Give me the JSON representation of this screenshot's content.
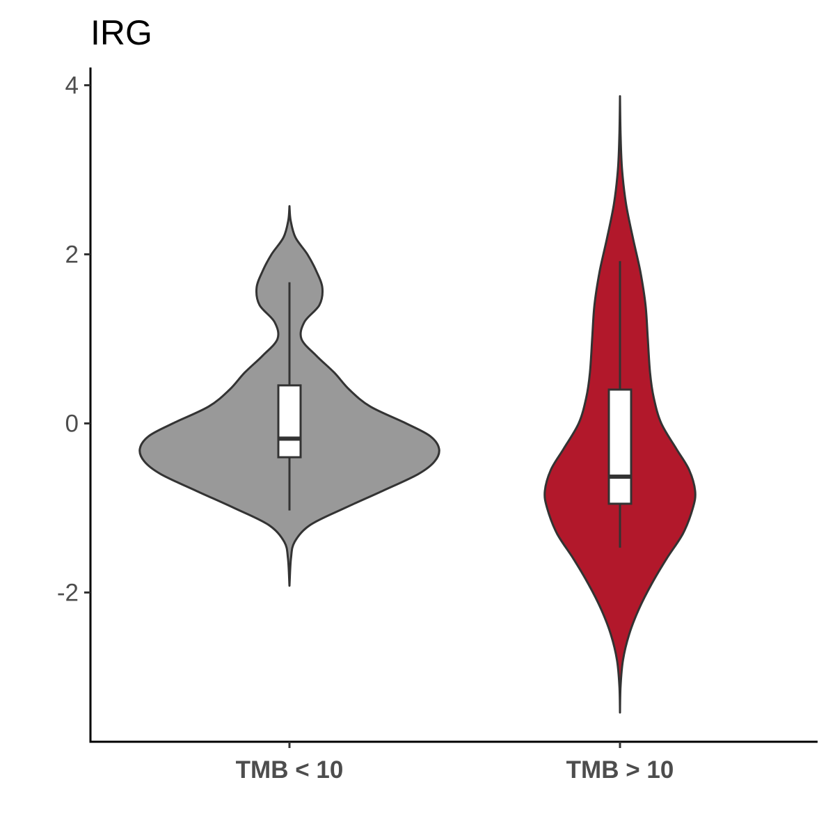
{
  "chart_data": {
    "type": "violin",
    "title": "IRG",
    "xlabel": "",
    "ylabel": "",
    "ylim": [
      -3.75,
      4.2
    ],
    "yticks": [
      {
        "value": -2,
        "label": "-2"
      },
      {
        "value": 0,
        "label": "0"
      },
      {
        "value": 2,
        "label": "2"
      },
      {
        "value": 4,
        "label": "4"
      }
    ],
    "categories": [
      "TMB < 10",
      "TMB > 10"
    ],
    "grid": false,
    "legend": "none",
    "series": [
      {
        "category": "TMB < 10",
        "color": "#999999",
        "box": {
          "whisker_low": -1.03,
          "q1": -0.4,
          "median": -0.18,
          "q3": 0.45,
          "whisker_high": 1.67
        },
        "violin_range": [
          -1.92,
          2.57
        ],
        "density": [
          [
            -1.92,
            0.0
          ],
          [
            -1.6,
            0.01
          ],
          [
            -1.4,
            0.035
          ],
          [
            -1.2,
            0.14
          ],
          [
            -1.0,
            0.37
          ],
          [
            -0.8,
            0.62
          ],
          [
            -0.6,
            0.86
          ],
          [
            -0.45,
            0.97
          ],
          [
            -0.3,
            1.0
          ],
          [
            -0.15,
            0.94
          ],
          [
            0.0,
            0.78
          ],
          [
            0.2,
            0.54
          ],
          [
            0.4,
            0.4
          ],
          [
            0.6,
            0.3
          ],
          [
            0.8,
            0.18
          ],
          [
            1.0,
            0.08
          ],
          [
            1.2,
            0.1
          ],
          [
            1.4,
            0.2
          ],
          [
            1.6,
            0.22
          ],
          [
            1.8,
            0.18
          ],
          [
            2.0,
            0.12
          ],
          [
            2.2,
            0.04
          ],
          [
            2.4,
            0.008
          ],
          [
            2.57,
            0.0
          ]
        ]
      },
      {
        "category": "TMB > 10",
        "color": "#b2182b",
        "box": {
          "whisker_low": -1.47,
          "q1": -0.95,
          "median": -0.63,
          "q3": 0.4,
          "whisker_high": 1.92
        },
        "violin_range": [
          -3.42,
          3.87
        ],
        "density": [
          [
            -3.42,
            0.0
          ],
          [
            -3.1,
            0.008
          ],
          [
            -2.8,
            0.04
          ],
          [
            -2.5,
            0.12
          ],
          [
            -2.2,
            0.25
          ],
          [
            -1.9,
            0.42
          ],
          [
            -1.6,
            0.62
          ],
          [
            -1.3,
            0.84
          ],
          [
            -1.0,
            0.97
          ],
          [
            -0.8,
            1.0
          ],
          [
            -0.55,
            0.92
          ],
          [
            -0.3,
            0.75
          ],
          [
            0.0,
            0.55
          ],
          [
            0.3,
            0.45
          ],
          [
            0.6,
            0.4
          ],
          [
            1.0,
            0.37
          ],
          [
            1.4,
            0.34
          ],
          [
            1.8,
            0.27
          ],
          [
            2.2,
            0.17
          ],
          [
            2.6,
            0.08
          ],
          [
            3.0,
            0.028
          ],
          [
            3.4,
            0.008
          ],
          [
            3.87,
            0.0
          ]
        ]
      }
    ]
  }
}
